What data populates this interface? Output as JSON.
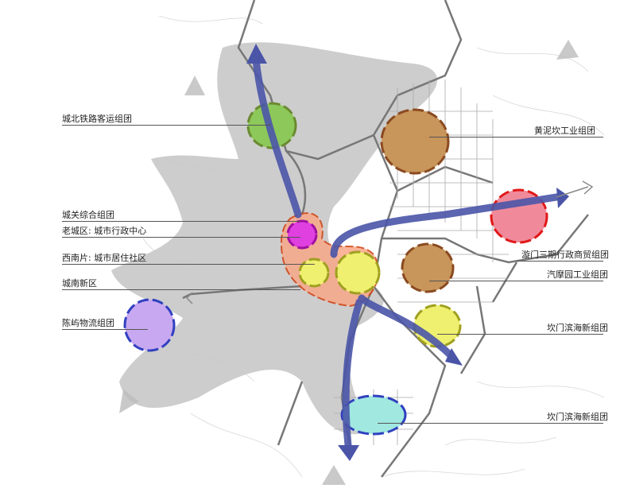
{
  "labels_left": [
    {
      "text": "城北铁路客运组团"
    },
    {
      "text": "城关综合组团"
    },
    {
      "text": "老城区: 城市行政中心"
    },
    {
      "text": "西南片: 城市居住社区"
    },
    {
      "text": "城南新区"
    },
    {
      "text": "陈屿物流组团"
    }
  ],
  "labels_right": [
    {
      "text": "黄泥坎工业组团"
    },
    {
      "text": "漩门三期行政商贸组团"
    },
    {
      "text": "汽摩园工业组团"
    },
    {
      "text": "坎门滨海新组团"
    },
    {
      "text": "坎门滨海新组团"
    }
  ],
  "colors": {
    "land": "#c8c8c8",
    "axis_arrow": "#4a55a8",
    "rail_north": "#8dc85a",
    "industrial": "#c8955a",
    "admin_trade": "#f08a9a",
    "old_city": "#e040e0",
    "residential": "#f0f070",
    "logistics": "#c8a8f0",
    "coastal_south": "#a0e8e0",
    "chengnan": "#f8a888"
  }
}
